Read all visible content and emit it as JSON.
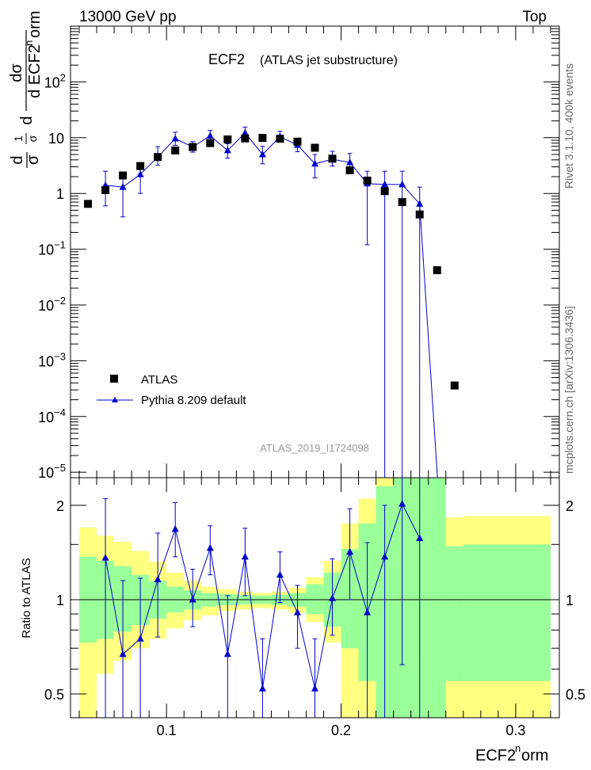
{
  "header": {
    "left": "13000 GeV pp",
    "right": "Top"
  },
  "plot_title": "ECF2",
  "plot_subtitle": "(ATLAS jet substructure)",
  "side_labels": {
    "rivet": "Rivet 3.1.10,  400k events",
    "mcplots": "mcplots.cern.ch [arXiv:1306.3436]"
  },
  "analysis_id": "ATLAS_2019_I1724098",
  "legend": {
    "data": "ATLAS",
    "mc": "Pythia 8.209 default"
  },
  "ratio_ylabel": "Ratio to ATLAS",
  "colors": {
    "mc": "#0000cc",
    "band_inner": "#99ff99",
    "band_outer": "#ffff80",
    "data": "#000000"
  },
  "chart_data": [
    {
      "type": "scatter",
      "yscale": "log",
      "xlim": [
        0.045,
        0.325
      ],
      "ylim": [
        8e-06,
        1000
      ],
      "ylabel": "dσ / d ECF2ⁿorm  ×  1/σ",
      "yticks": [
        {
          "v": 1e-05,
          "b": "10",
          "e": "−5"
        },
        {
          "v": 0.0001,
          "b": "10",
          "e": "−4"
        },
        {
          "v": 0.001,
          "b": "10",
          "e": "−3"
        },
        {
          "v": 0.01,
          "b": "10",
          "e": "−2"
        },
        {
          "v": 0.1,
          "b": "10",
          "e": "−1"
        },
        {
          "v": 1,
          "b": "1",
          "e": ""
        },
        {
          "v": 10,
          "b": "10",
          "e": ""
        },
        {
          "v": 100,
          "b": "10",
          "e": "2"
        }
      ],
      "series": [
        {
          "name": "ATLAS",
          "x": [
            0.055,
            0.065,
            0.075,
            0.085,
            0.095,
            0.105,
            0.115,
            0.125,
            0.135,
            0.145,
            0.155,
            0.165,
            0.175,
            0.185,
            0.195,
            0.205,
            0.215,
            0.225,
            0.235,
            0.245,
            0.255,
            0.265,
            0.295
          ],
          "y": [
            0.65,
            1.15,
            2.1,
            3.1,
            4.5,
            5.9,
            6.8,
            8.0,
            9.3,
            9.7,
            9.9,
            9.6,
            8.5,
            6.6,
            4.2,
            2.6,
            1.7,
            1.1,
            0.7,
            0.42,
            0.042,
            0.00036,
            null
          ]
        },
        {
          "name": "Pythia 8.209 default",
          "x": [
            0.065,
            0.075,
            0.085,
            0.095,
            0.105,
            0.115,
            0.125,
            0.135,
            0.145,
            0.155,
            0.165,
            0.175,
            0.185,
            0.195,
            0.205,
            0.215,
            0.225,
            0.235,
            0.245,
            0.255
          ],
          "y": [
            1.4,
            1.3,
            2.2,
            4.5,
            9.6,
            6.8,
            10.8,
            5.9,
            12.2,
            5.0,
            10.4,
            7.4,
            3.4,
            4.1,
            3.6,
            1.5,
            1.45,
            1.45,
            0.65,
            null
          ],
          "ylow": [
            0.6,
            0.38,
            1.0,
            3.2,
            7.3,
            5.5,
            8.2,
            4.3,
            9.7,
            3.4,
            8.5,
            5.6,
            1.9,
            3.1,
            2.6,
            0.12,
            0.0,
            0.0,
            0.0,
            null
          ],
          "yhigh": [
            2.5,
            2.3,
            3.5,
            6.9,
            12.5,
            8.5,
            13.5,
            7.8,
            15.5,
            7.0,
            13.0,
            9.5,
            5.0,
            5.7,
            5.2,
            2.5,
            2.5,
            2.5,
            1.3,
            null
          ]
        }
      ]
    },
    {
      "type": "scatter",
      "yscale": "log",
      "xlim": [
        0.045,
        0.325
      ],
      "ylim": [
        0.42,
        2.45
      ],
      "ylabel": "Ratio to ATLAS",
      "xlabel": "ECF2ⁿorm",
      "yticks": [
        0.5,
        1,
        2
      ],
      "xticks": [
        0.1,
        0.2,
        0.3
      ],
      "reference": 1,
      "band_edges": [
        0.05,
        0.06,
        0.07,
        0.08,
        0.09,
        0.1,
        0.11,
        0.12,
        0.13,
        0.14,
        0.15,
        0.16,
        0.17,
        0.18,
        0.19,
        0.2,
        0.21,
        0.22,
        0.23,
        0.24,
        0.25,
        0.26,
        0.27,
        0.32
      ],
      "band_inner": [
        [
          0.73,
          1.37
        ],
        [
          0.75,
          1.33
        ],
        [
          0.79,
          1.28
        ],
        [
          0.83,
          1.2
        ],
        [
          0.87,
          1.15
        ],
        [
          0.91,
          1.1
        ],
        [
          0.93,
          1.07
        ],
        [
          0.95,
          1.05
        ],
        [
          0.96,
          1.04
        ],
        [
          0.965,
          1.035
        ],
        [
          0.97,
          1.03
        ],
        [
          0.965,
          1.035
        ],
        [
          0.95,
          1.05
        ],
        [
          0.9,
          1.12
        ],
        [
          0.82,
          1.22
        ],
        [
          0.7,
          1.45
        ],
        [
          0.55,
          1.75
        ],
        [
          0.37,
          2.3
        ],
        [
          0.37,
          2.45
        ],
        [
          0.37,
          2.45
        ],
        [
          0.37,
          2.45
        ],
        [
          0.55,
          1.48
        ],
        [
          0.55,
          1.5
        ]
      ],
      "band_outer": [
        [
          0.37,
          1.7
        ],
        [
          0.58,
          1.6
        ],
        [
          0.64,
          1.53
        ],
        [
          0.7,
          1.43
        ],
        [
          0.75,
          1.32
        ],
        [
          0.81,
          1.22
        ],
        [
          0.86,
          1.15
        ],
        [
          0.89,
          1.1
        ],
        [
          0.92,
          1.08
        ],
        [
          0.93,
          1.06
        ],
        [
          0.94,
          1.05
        ],
        [
          0.93,
          1.06
        ],
        [
          0.91,
          1.09
        ],
        [
          0.85,
          1.18
        ],
        [
          0.73,
          1.33
        ],
        [
          0.37,
          1.75
        ],
        [
          0.37,
          2.1
        ],
        [
          0.37,
          2.45
        ],
        [
          0.37,
          2.45
        ],
        [
          0.37,
          2.45
        ],
        [
          0.37,
          2.45
        ],
        [
          0.37,
          1.83
        ],
        [
          0.37,
          1.85
        ]
      ],
      "series": [
        {
          "name": "Pythia 8.209 default",
          "x": [
            0.065,
            0.075,
            0.085,
            0.095,
            0.105,
            0.115,
            0.125,
            0.135,
            0.145,
            0.155,
            0.165,
            0.175,
            0.185,
            0.195,
            0.205,
            0.215,
            0.225,
            0.235,
            0.245,
            0.255
          ],
          "y": [
            1.36,
            0.67,
            0.75,
            1.16,
            1.68,
            1.0,
            1.46,
            0.67,
            1.37,
            0.52,
            1.2,
            0.91,
            0.52,
            1.01,
            1.42,
            0.91,
            1.37,
            2.02,
            1.57,
            null
          ],
          "ylow": [
            0.3,
            0.3,
            0.3,
            0.76,
            1.37,
            0.82,
            1.2,
            0.37,
            1.03,
            0.3,
            0.98,
            0.7,
            0.3,
            0.77,
            1.0,
            0.3,
            0.3,
            0.62,
            0.3,
            null
          ],
          "yhigh": [
            2.1,
            1.15,
            1.17,
            1.63,
            2.04,
            1.25,
            1.72,
            1.03,
            1.69,
            0.75,
            1.42,
            1.11,
            0.75,
            1.35,
            1.95,
            1.52,
            2.0,
            2.6,
            2.6,
            null
          ]
        }
      ]
    }
  ]
}
